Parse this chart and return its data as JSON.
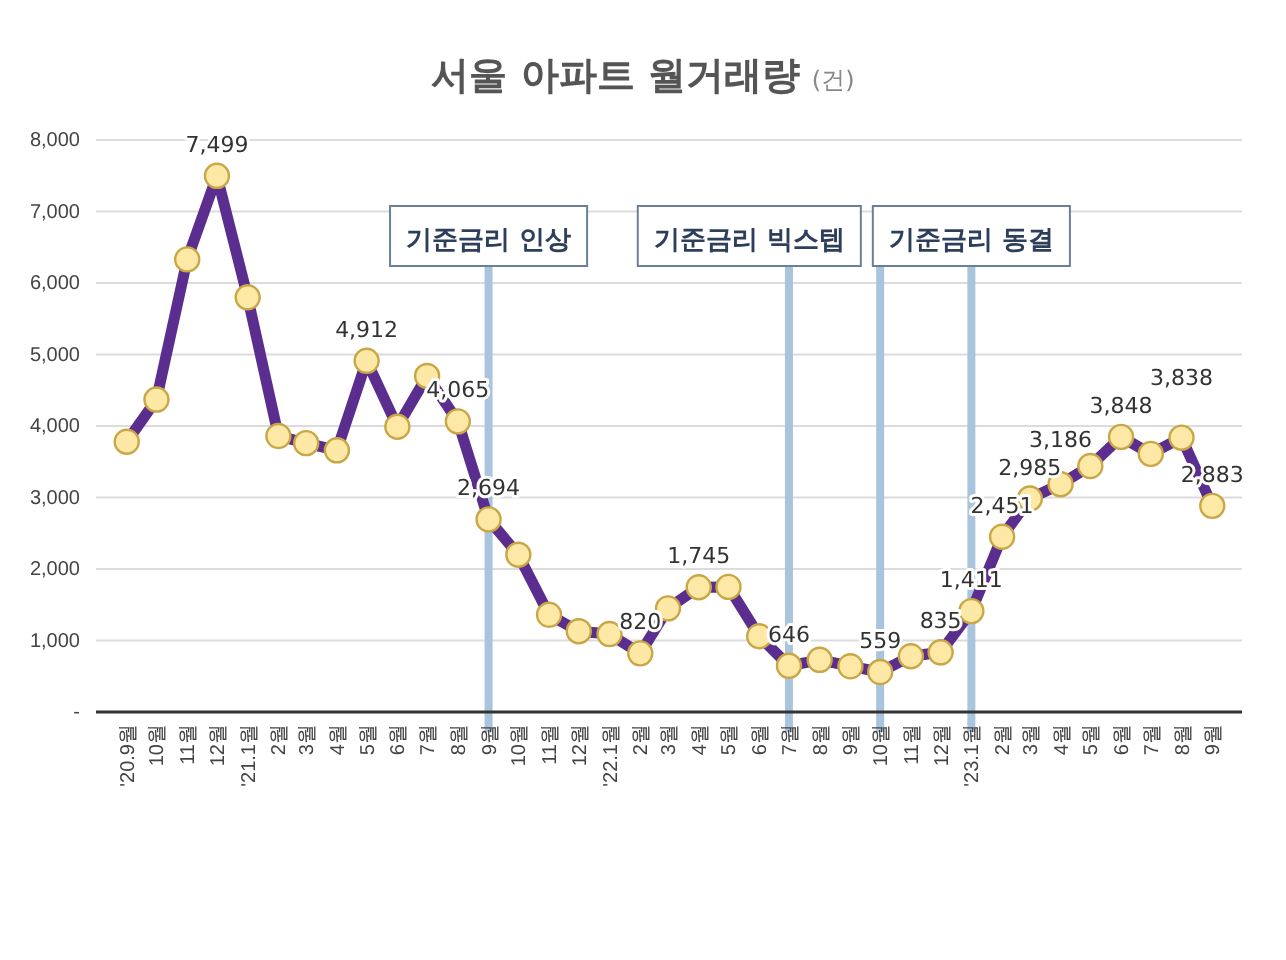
{
  "chart_data": {
    "type": "line",
    "title": "서울 아파트 월거래량",
    "subtitle": "(건)",
    "x": [
      "2020-09",
      "2020-10",
      "2020-11",
      "2020-12",
      "2021-01",
      "2021-02",
      "2021-03",
      "2021-04",
      "2021-05",
      "2021-06",
      "2021-07",
      "2021-08",
      "2021-09",
      "2021-10",
      "2021-11",
      "2021-12",
      "2022-01",
      "2022-02",
      "2022-03",
      "2022-04",
      "2022-05",
      "2022-06",
      "2022-07",
      "2022-08",
      "2022-09",
      "2022-10",
      "2022-11",
      "2022-12",
      "2023-01",
      "2023-02",
      "2023-03",
      "2023-04",
      "2023-05",
      "2023-06",
      "2023-07",
      "2023-08",
      "2023-09"
    ],
    "xlim": [
      "2020-08",
      "2023-10"
    ],
    "xticks": [
      {
        "value": "2020-09",
        "label": "'20.9월"
      },
      {
        "value": "2020-10",
        "label": "10월"
      },
      {
        "value": "2020-11",
        "label": "11월"
      },
      {
        "value": "2020-12",
        "label": "12월"
      },
      {
        "value": "2021-01",
        "label": "'21.1월"
      },
      {
        "value": "2021-02",
        "label": "2월"
      },
      {
        "value": "2021-03",
        "label": "3월"
      },
      {
        "value": "2021-04",
        "label": "4월"
      },
      {
        "value": "2021-05",
        "label": "5월"
      },
      {
        "value": "2021-06",
        "label": "6월"
      },
      {
        "value": "2021-07",
        "label": "7월"
      },
      {
        "value": "2021-08",
        "label": "8월"
      },
      {
        "value": "2021-09",
        "label": "9월"
      },
      {
        "value": "2021-10",
        "label": "10월"
      },
      {
        "value": "2021-11",
        "label": "11월"
      },
      {
        "value": "2021-12",
        "label": "12월"
      },
      {
        "value": "2022-01",
        "label": "'22.1월"
      },
      {
        "value": "2022-02",
        "label": "2월"
      },
      {
        "value": "2022-03",
        "label": "3월"
      },
      {
        "value": "2022-04",
        "label": "4월"
      },
      {
        "value": "2022-05",
        "label": "5월"
      },
      {
        "value": "2022-06",
        "label": "6월"
      },
      {
        "value": "2022-07",
        "label": "7월"
      },
      {
        "value": "2022-08",
        "label": "8월"
      },
      {
        "value": "2022-09",
        "label": "9월"
      },
      {
        "value": "2022-10",
        "label": "10월"
      },
      {
        "value": "2022-11",
        "label": "11월"
      },
      {
        "value": "2022-12",
        "label": "12월"
      },
      {
        "value": "2023-01",
        "label": "'23.1월"
      },
      {
        "value": "2023-02",
        "label": "2월"
      },
      {
        "value": "2023-03",
        "label": "3월"
      },
      {
        "value": "2023-04",
        "label": "4월"
      },
      {
        "value": "2023-05",
        "label": "5월"
      },
      {
        "value": "2023-06",
        "label": "6월"
      },
      {
        "value": "2023-07",
        "label": "7월"
      },
      {
        "value": "2023-08",
        "label": "8월"
      },
      {
        "value": "2023-09",
        "label": "9월"
      }
    ],
    "ylim": [
      0,
      8000
    ],
    "yticks": [
      {
        "value": 0,
        "label": "-"
      },
      {
        "value": 1000,
        "label": "1,000"
      },
      {
        "value": 2000,
        "label": "2,000"
      },
      {
        "value": 3000,
        "label": "3,000"
      },
      {
        "value": 4000,
        "label": "4,000"
      },
      {
        "value": 5000,
        "label": "5,000"
      },
      {
        "value": 6000,
        "label": "6,000"
      },
      {
        "value": 7000,
        "label": "7,000"
      },
      {
        "value": 8000,
        "label": "8,000"
      }
    ],
    "grid": "y",
    "marker": "circle",
    "line_style": "solid",
    "series": [
      {
        "color": "#5b2d8e",
        "values": [
          3780,
          4370,
          6330,
          7499,
          5800,
          3860,
          3760,
          3660,
          4912,
          3990,
          4700,
          4065,
          2694,
          2200,
          1360,
          1130,
          1090,
          820,
          1450,
          1745,
          1750,
          1060,
          646,
          730,
          640,
          559,
          780,
          835,
          1411,
          2451,
          2985,
          3186,
          3440,
          3848,
          3610,
          3838,
          2883
        ],
        "value_labels": [
          null,
          null,
          null,
          "7,499",
          null,
          null,
          null,
          null,
          "4,912",
          null,
          null,
          "4,065",
          "2,694",
          null,
          null,
          null,
          null,
          "820",
          null,
          "1,745",
          null,
          null,
          "646",
          null,
          null,
          "559",
          null,
          "835",
          "1,411",
          "2,451",
          "2,985",
          "3,186",
          null,
          "3,848",
          null,
          "3,838",
          "2,883"
        ]
      }
    ],
    "ref_lines": [
      {
        "axis": "x",
        "value": "2021-09",
        "label": "기준금리 인상",
        "color": "#a9c4dc"
      },
      {
        "axis": "x",
        "value": "2022-07",
        "label": "기준금리 빅스텝",
        "color": "#a9c4dc"
      },
      {
        "axis": "x",
        "value": "2022-10",
        "label": null,
        "color": "#a9c4dc"
      },
      {
        "axis": "x",
        "value": "2023-01",
        "label": "기준금리 동결",
        "color": "#a9c4dc"
      }
    ]
  }
}
